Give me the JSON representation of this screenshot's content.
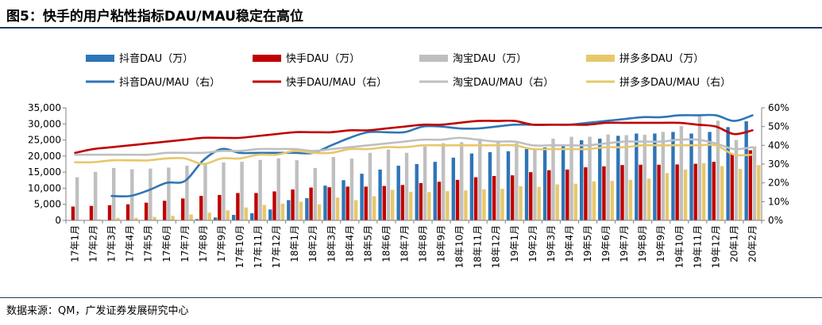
{
  "title": "图5：快手的用户粘性指标DAU/MAU稳定在高位",
  "source": "数据来源：QM，广发证券发展研究中心",
  "chart_data": {
    "type": "bar",
    "categories": [
      "17年1月",
      "17年2月",
      "17年3月",
      "17年4月",
      "17年5月",
      "17年6月",
      "17年7月",
      "17年8月",
      "17年9月",
      "17年10月",
      "17年11月",
      "17年12月",
      "18年1月",
      "18年2月",
      "18年3月",
      "18年4月",
      "18年5月",
      "18年6月",
      "18年7月",
      "18年8月",
      "18年9月",
      "18年10月",
      "18年11月",
      "18年12月",
      "19年1月",
      "19年2月",
      "19年3月",
      "19年4月",
      "19年5月",
      "19年6月",
      "19年7月",
      "19年8月",
      "19年9月",
      "19年10月",
      "19年11月",
      "19年12月",
      "20年1月",
      "20年2月"
    ],
    "y_left": {
      "ylim": [
        0,
        35000
      ],
      "ticks": [
        0,
        5000,
        10000,
        15000,
        20000,
        25000,
        30000,
        35000
      ],
      "tick_labels": [
        "0",
        "5,000",
        "10,000",
        "15,000",
        "20,000",
        "25,000",
        "30,000",
        "35,000"
      ]
    },
    "y_right": {
      "ylim": [
        0,
        60
      ],
      "ticks": [
        0,
        10,
        20,
        30,
        40,
        50,
        60
      ],
      "tick_labels": [
        "0%",
        "10%",
        "20%",
        "30%",
        "40%",
        "50%",
        "60%"
      ]
    },
    "grid": false,
    "legend_position": "top",
    "bar_series": [
      {
        "name": "抖音DAU（万）",
        "color": "#2e75b6",
        "values": [
          0,
          0,
          0,
          0,
          0,
          0,
          0,
          400,
          900,
          1700,
          2200,
          3400,
          6300,
          6900,
          10800,
          12500,
          14500,
          15800,
          17000,
          17500,
          18200,
          19500,
          20800,
          21200,
          21500,
          22200,
          22700,
          23500,
          24900,
          25400,
          26300,
          27000,
          27000,
          27500,
          27000,
          27500,
          29000,
          30800
        ]
      },
      {
        "name": "快手DAU（万）",
        "color": "#c00000",
        "values": [
          4300,
          4500,
          4700,
          5000,
          5500,
          6100,
          6800,
          7600,
          7900,
          8500,
          8500,
          9000,
          9600,
          10200,
          10300,
          10500,
          10500,
          10700,
          11000,
          11600,
          12000,
          12600,
          13400,
          13800,
          14000,
          15000,
          15600,
          15800,
          16500,
          16800,
          17200,
          17300,
          17300,
          17400,
          17600,
          18200,
          20600,
          21800
        ]
      },
      {
        "name": "淘宝DAU（万）",
        "color": "#bfbfbf",
        "values": [
          13400,
          15100,
          16300,
          15900,
          16100,
          16400,
          17000,
          17900,
          18000,
          18200,
          18800,
          19300,
          18700,
          16300,
          19700,
          19200,
          21000,
          22000,
          21000,
          23000,
          24000,
          24300,
          25400,
          24800,
          24000,
          22000,
          25400,
          26000,
          26000,
          26700,
          26500,
          26600,
          27500,
          29300,
          32500,
          31000,
          25000,
          23000
        ]
      },
      {
        "name": "拼多多DAU（万）",
        "color": "#e6c86b",
        "values": [
          0,
          300,
          800,
          800,
          1100,
          1400,
          1800,
          2400,
          3100,
          4000,
          4800,
          5200,
          5800,
          5000,
          7100,
          6300,
          7500,
          9500,
          8900,
          8800,
          9100,
          9300,
          9600,
          9800,
          10600,
          10400,
          11200,
          11400,
          12100,
          12300,
          12600,
          13000,
          14700,
          15800,
          17800,
          16900,
          16000,
          17200
        ]
      }
    ],
    "line_series": [
      {
        "name": "抖音DAU/MAU（右）",
        "color": "#2e75b6",
        "values": [
          null,
          null,
          13,
          13,
          16,
          20,
          21,
          32,
          38,
          36,
          36,
          36,
          36,
          36,
          40,
          44,
          47,
          47,
          47,
          50,
          50,
          49,
          49,
          50,
          51,
          51,
          51,
          51,
          52,
          53,
          54,
          55,
          55,
          56,
          56,
          56,
          53,
          56
        ]
      },
      {
        "name": "快手DAU/MAU（右）",
        "color": "#c00000",
        "values": [
          36,
          38,
          39,
          40,
          41,
          42,
          43,
          44,
          44,
          44,
          45,
          46,
          47,
          47,
          47,
          48,
          48,
          49,
          50,
          51,
          51,
          52,
          53,
          53,
          53,
          51,
          51,
          51,
          51,
          52,
          52,
          52,
          52,
          52,
          51,
          50,
          46,
          48
        ]
      },
      {
        "name": "淘宝DAU/MAU（右）",
        "color": "#bfbfbf",
        "values": [
          35,
          35,
          35,
          35,
          35,
          36,
          36,
          36,
          37,
          37,
          38,
          38,
          38,
          37,
          38,
          39,
          40,
          41,
          42,
          43,
          43,
          44,
          43,
          42,
          42,
          40,
          40,
          40,
          40,
          41,
          42,
          42,
          42,
          43,
          43,
          41,
          38,
          39
        ]
      },
      {
        "name": "拼多多DAU/MAU（右）",
        "color": "#e6c86b",
        "values": [
          31,
          31,
          32,
          32,
          32,
          33,
          33,
          30,
          33,
          33,
          35,
          35,
          37,
          36,
          36,
          38,
          38,
          39,
          39,
          40,
          40,
          40,
          40,
          40,
          40,
          38,
          38,
          38,
          38,
          39,
          39,
          40,
          40,
          40,
          40,
          40,
          35,
          35
        ]
      }
    ]
  }
}
